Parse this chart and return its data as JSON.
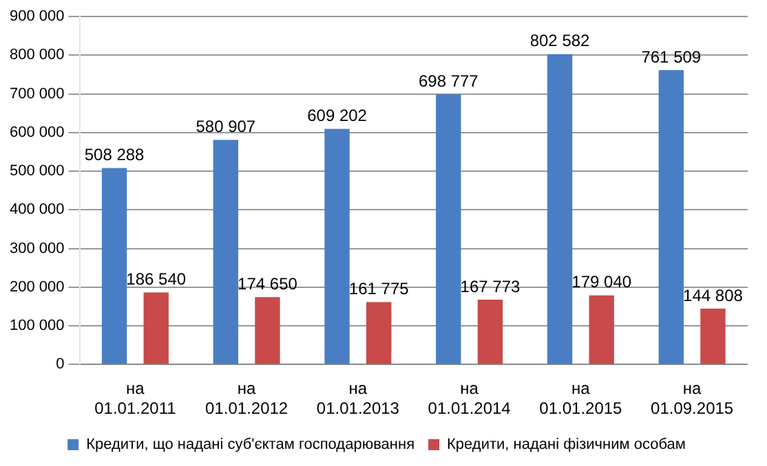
{
  "chart_data": {
    "type": "bar",
    "categories": [
      "на 01.01.2011",
      "на 01.01.2012",
      "на 01.01.2013",
      "на 01.01.2014",
      "на 01.01.2015",
      "на 01.09.2015"
    ],
    "series": [
      {
        "name": "Кредити, що надані суб'єктам господарювання",
        "color": "#4a7ec4",
        "values": [
          508288,
          580907,
          609202,
          698777,
          802582,
          761509
        ],
        "value_labels": [
          "508 288",
          "580 907",
          "609 202",
          "698 777",
          "802 582",
          "761 509"
        ]
      },
      {
        "name": "Кредити, надані фізичним особам",
        "color": "#c84a4a",
        "values": [
          186540,
          174650,
          161775,
          167773,
          179040,
          144808
        ],
        "value_labels": [
          "186 540",
          "174 650",
          "161 775",
          "167 773",
          "179 040",
          "144 808"
        ]
      }
    ],
    "ylim": [
      0,
      900000
    ],
    "yticks": [
      {
        "value": 0,
        "label": "0"
      },
      {
        "value": 100000,
        "label": "100 000"
      },
      {
        "value": 200000,
        "label": "200 000"
      },
      {
        "value": 300000,
        "label": "300 000"
      },
      {
        "value": 400000,
        "label": "400 000"
      },
      {
        "value": 500000,
        "label": "500 000"
      },
      {
        "value": 600000,
        "label": "600 000"
      },
      {
        "value": 700000,
        "label": "700 000"
      },
      {
        "value": 800000,
        "label": "800 000"
      },
      {
        "value": 900000,
        "label": "900 000"
      }
    ],
    "grid": "y",
    "legend": "bottom"
  }
}
